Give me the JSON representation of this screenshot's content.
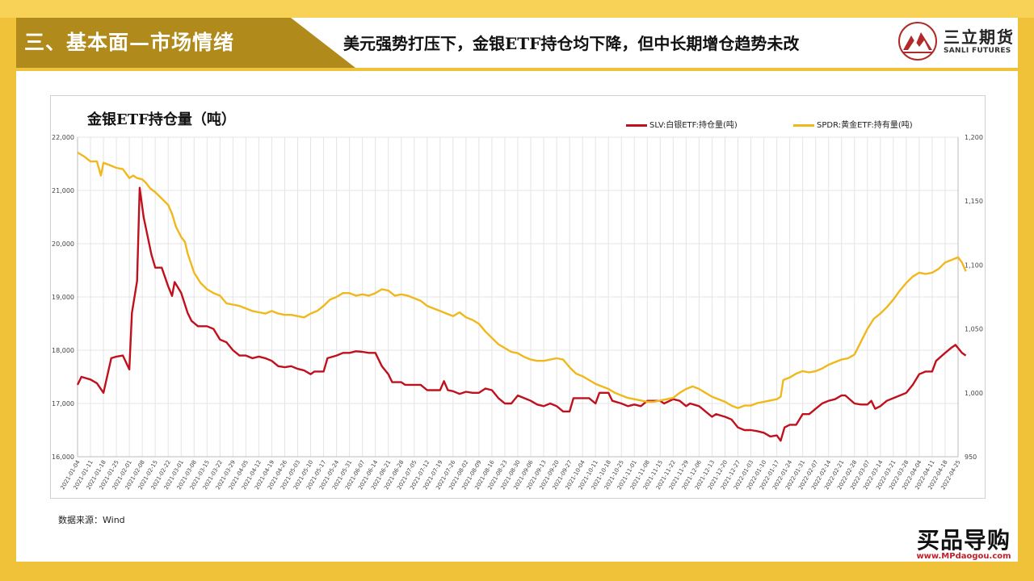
{
  "header": {
    "section_title": "三、基本面—市场情绪",
    "headline": "美元强势打压下，金银ETF持仓均下降，但中长期增仓趋势未改",
    "logo_cn": "三立期货",
    "logo_en": "SANLI FUTURES"
  },
  "footer": {
    "source": "数据来源：Wind",
    "watermark_main": "买品导购",
    "watermark_url": "www.MPdaogou.com"
  },
  "colors": {
    "gold_band": "#f0c23a",
    "dark_band": "#b08a1a",
    "silver_series": "#c0101e",
    "gold_series": "#f0b81c"
  },
  "chart_data": {
    "type": "line",
    "title": "金银ETF持仓量（吨）",
    "grid": true,
    "legend_position": "top-right",
    "y_left": {
      "min": 16000,
      "max": 22000,
      "ticks": [
        "16,000",
        "17,000",
        "18,000",
        "19,000",
        "20,000",
        "21,000",
        "22,000"
      ]
    },
    "y_right": {
      "min": 950,
      "max": 1200,
      "ticks": [
        "950",
        "1,000",
        "1,050",
        "1,100",
        "1,150",
        "1,200"
      ]
    },
    "x_labels": [
      "2021-01-04",
      "2021-01-11",
      "2021-01-18",
      "2021-01-25",
      "2021-02-01",
      "2021-02-08",
      "2021-02-15",
      "2021-02-22",
      "2021-03-01",
      "2021-03-08",
      "2021-03-15",
      "2021-03-22",
      "2021-03-29",
      "2021-04-05",
      "2021-04-12",
      "2021-04-19",
      "2021-04-26",
      "2021-05-03",
      "2021-05-10",
      "2021-05-17",
      "2021-05-24",
      "2021-05-31",
      "2021-06-07",
      "2021-06-14",
      "2021-06-21",
      "2021-06-28",
      "2021-07-05",
      "2021-07-12",
      "2021-07-19",
      "2021-07-26",
      "2021-08-02",
      "2021-08-09",
      "2021-08-16",
      "2021-08-23",
      "2021-08-30",
      "2021-09-06",
      "2021-09-13",
      "2021-09-20",
      "2021-09-27",
      "2021-10-04",
      "2021-10-11",
      "2021-10-18",
      "2021-10-25",
      "2021-11-01",
      "2021-11-08",
      "2021-11-15",
      "2021-11-22",
      "2021-11-29",
      "2021-12-06",
      "2021-12-13",
      "2021-12-20",
      "2021-12-27",
      "2022-01-03",
      "2022-01-10",
      "2022-01-17",
      "2022-01-24",
      "2022-01-31",
      "2022-02-07",
      "2022-02-14",
      "2022-02-21",
      "2022-02-28",
      "2022-03-07",
      "2022-03-14",
      "2022-03-21",
      "2022-03-28",
      "2022-04-04",
      "2022-04-11",
      "2022-04-18",
      "2022-04-25"
    ],
    "series": [
      {
        "name": "SLV:白银ETF:持仓量(吨)",
        "axis": "left",
        "color": "#c0101e",
        "points": [
          [
            0,
            17350
          ],
          [
            0.3,
            17500
          ],
          [
            1,
            17450
          ],
          [
            1.5,
            17380
          ],
          [
            2,
            17200
          ],
          [
            2.6,
            17850
          ],
          [
            3,
            17880
          ],
          [
            3.5,
            17900
          ],
          [
            4,
            17640
          ],
          [
            4.2,
            18700
          ],
          [
            4.6,
            19300
          ],
          [
            4.8,
            21050
          ],
          [
            5.1,
            20500
          ],
          [
            5.4,
            20150
          ],
          [
            5.7,
            19800
          ],
          [
            6,
            19550
          ],
          [
            6.5,
            19550
          ],
          [
            7,
            19200
          ],
          [
            7.3,
            19020
          ],
          [
            7.5,
            19280
          ],
          [
            8,
            19080
          ],
          [
            8.5,
            18700
          ],
          [
            8.8,
            18550
          ],
          [
            9.3,
            18450
          ],
          [
            10,
            18450
          ],
          [
            10.5,
            18400
          ],
          [
            11,
            18200
          ],
          [
            11.5,
            18150
          ],
          [
            12,
            18000
          ],
          [
            12.5,
            17900
          ],
          [
            13,
            17900
          ],
          [
            13.5,
            17850
          ],
          [
            14,
            17880
          ],
          [
            14.5,
            17850
          ],
          [
            15,
            17800
          ],
          [
            15.5,
            17700
          ],
          [
            16,
            17680
          ],
          [
            16.5,
            17700
          ],
          [
            17,
            17650
          ],
          [
            17.5,
            17620
          ],
          [
            18,
            17550
          ],
          [
            18.3,
            17600
          ],
          [
            19,
            17600
          ],
          [
            19.3,
            17850
          ],
          [
            20,
            17900
          ],
          [
            20.5,
            17950
          ],
          [
            21,
            17950
          ],
          [
            21.5,
            17980
          ],
          [
            22,
            17970
          ],
          [
            22.5,
            17950
          ],
          [
            23,
            17950
          ],
          [
            23.5,
            17700
          ],
          [
            24,
            17550
          ],
          [
            24.3,
            17400
          ],
          [
            25,
            17400
          ],
          [
            25.3,
            17350
          ],
          [
            26,
            17350
          ],
          [
            26.5,
            17350
          ],
          [
            27,
            17250
          ],
          [
            27.5,
            17250
          ],
          [
            28,
            17250
          ],
          [
            28.3,
            17420
          ],
          [
            28.6,
            17250
          ],
          [
            29,
            17230
          ],
          [
            29.5,
            17180
          ],
          [
            30,
            17220
          ],
          [
            30.5,
            17200
          ],
          [
            31,
            17200
          ],
          [
            31.5,
            17280
          ],
          [
            32,
            17250
          ],
          [
            32.5,
            17100
          ],
          [
            33,
            17000
          ],
          [
            33.5,
            17000
          ],
          [
            34,
            17150
          ],
          [
            34.5,
            17100
          ],
          [
            35,
            17050
          ],
          [
            35.5,
            16980
          ],
          [
            36,
            16950
          ],
          [
            36.5,
            17000
          ],
          [
            37,
            16950
          ],
          [
            37.5,
            16850
          ],
          [
            38,
            16850
          ],
          [
            38.3,
            17100
          ],
          [
            39,
            17100
          ],
          [
            39.5,
            17100
          ],
          [
            40,
            17000
          ],
          [
            40.3,
            17200
          ],
          [
            41,
            17200
          ],
          [
            41.3,
            17050
          ],
          [
            42,
            17000
          ],
          [
            42.5,
            16950
          ],
          [
            43,
            16980
          ],
          [
            43.5,
            16950
          ],
          [
            44,
            17050
          ],
          [
            44.5,
            17050
          ],
          [
            45,
            17050
          ],
          [
            45.3,
            17000
          ],
          [
            46,
            17080
          ],
          [
            46.5,
            17050
          ],
          [
            47,
            16950
          ],
          [
            47.3,
            17000
          ],
          [
            48,
            16950
          ],
          [
            48.5,
            16850
          ],
          [
            49,
            16750
          ],
          [
            49.3,
            16800
          ],
          [
            50,
            16750
          ],
          [
            50.5,
            16700
          ],
          [
            51,
            16550
          ],
          [
            51.5,
            16500
          ],
          [
            52,
            16500
          ],
          [
            52.5,
            16480
          ],
          [
            53,
            16450
          ],
          [
            53.5,
            16380
          ],
          [
            54,
            16400
          ],
          [
            54.3,
            16300
          ],
          [
            54.6,
            16550
          ],
          [
            55,
            16600
          ],
          [
            55.5,
            16600
          ],
          [
            56,
            16800
          ],
          [
            56.5,
            16800
          ],
          [
            57,
            16900
          ],
          [
            57.5,
            17000
          ],
          [
            58,
            17050
          ],
          [
            58.5,
            17080
          ],
          [
            59,
            17150
          ],
          [
            59.3,
            17150
          ],
          [
            60,
            17000
          ],
          [
            60.5,
            16980
          ],
          [
            61,
            16980
          ],
          [
            61.3,
            17050
          ],
          [
            61.6,
            16900
          ],
          [
            62,
            16950
          ],
          [
            62.5,
            17050
          ],
          [
            63,
            17100
          ],
          [
            63.5,
            17150
          ],
          [
            64,
            17200
          ],
          [
            64.5,
            17350
          ],
          [
            65,
            17550
          ],
          [
            65.5,
            17600
          ],
          [
            66,
            17600
          ],
          [
            66.3,
            17800
          ],
          [
            67,
            17950
          ],
          [
            67.5,
            18050
          ],
          [
            67.8,
            18100
          ],
          [
            68.3,
            17950
          ],
          [
            68.6,
            17900
          ]
        ]
      },
      {
        "name": "SPDR:黄金ETF:持有量(吨)",
        "axis": "right",
        "color": "#f0b81c",
        "points": [
          [
            0,
            1188
          ],
          [
            0.5,
            1185
          ],
          [
            1,
            1181
          ],
          [
            1.5,
            1181
          ],
          [
            1.8,
            1170
          ],
          [
            2,
            1180
          ],
          [
            2.5,
            1178
          ],
          [
            3,
            1176
          ],
          [
            3.5,
            1175
          ],
          [
            4,
            1168
          ],
          [
            4.3,
            1170
          ],
          [
            4.6,
            1168
          ],
          [
            5,
            1167
          ],
          [
            5.3,
            1164
          ],
          [
            5.6,
            1160
          ],
          [
            6,
            1157
          ],
          [
            6.5,
            1152
          ],
          [
            7,
            1147
          ],
          [
            7.3,
            1140
          ],
          [
            7.6,
            1130
          ],
          [
            8,
            1122
          ],
          [
            8.3,
            1118
          ],
          [
            8.5,
            1109
          ],
          [
            9,
            1094
          ],
          [
            9.5,
            1086
          ],
          [
            10,
            1081
          ],
          [
            10.5,
            1078
          ],
          [
            11,
            1076
          ],
          [
            11.5,
            1070
          ],
          [
            12,
            1069
          ],
          [
            12.5,
            1068
          ],
          [
            13,
            1066
          ],
          [
            13.5,
            1064
          ],
          [
            14,
            1063
          ],
          [
            14.5,
            1062
          ],
          [
            15,
            1064
          ],
          [
            15.5,
            1062
          ],
          [
            16,
            1061
          ],
          [
            16.5,
            1061
          ],
          [
            17,
            1060
          ],
          [
            17.5,
            1059
          ],
          [
            18,
            1062
          ],
          [
            18.5,
            1064
          ],
          [
            19,
            1068
          ],
          [
            19.5,
            1073
          ],
          [
            20,
            1075
          ],
          [
            20.5,
            1078
          ],
          [
            21,
            1078
          ],
          [
            21.5,
            1076
          ],
          [
            22,
            1077
          ],
          [
            22.5,
            1076
          ],
          [
            23,
            1078
          ],
          [
            23.5,
            1081
          ],
          [
            24,
            1080
          ],
          [
            24.5,
            1076
          ],
          [
            25,
            1077
          ],
          [
            25.5,
            1076
          ],
          [
            26,
            1074
          ],
          [
            26.5,
            1072
          ],
          [
            27,
            1068
          ],
          [
            27.5,
            1066
          ],
          [
            28,
            1064
          ],
          [
            28.5,
            1062
          ],
          [
            29,
            1060
          ],
          [
            29.5,
            1063
          ],
          [
            30,
            1059
          ],
          [
            30.5,
            1057
          ],
          [
            31,
            1054
          ],
          [
            31.5,
            1048
          ],
          [
            32,
            1043
          ],
          [
            32.5,
            1038
          ],
          [
            33,
            1035
          ],
          [
            33.5,
            1032
          ],
          [
            34,
            1031
          ],
          [
            34.5,
            1028
          ],
          [
            35,
            1026
          ],
          [
            35.5,
            1025
          ],
          [
            36,
            1025
          ],
          [
            36.5,
            1026
          ],
          [
            37,
            1027
          ],
          [
            37.5,
            1026
          ],
          [
            38,
            1020
          ],
          [
            38.5,
            1015
          ],
          [
            39,
            1013
          ],
          [
            39.5,
            1010
          ],
          [
            40,
            1007
          ],
          [
            40.5,
            1005
          ],
          [
            41,
            1003
          ],
          [
            41.5,
            1000
          ],
          [
            42,
            998
          ],
          [
            42.5,
            996
          ],
          [
            43,
            995
          ],
          [
            43.5,
            994
          ],
          [
            44,
            993
          ],
          [
            44.5,
            993
          ],
          [
            45,
            994
          ],
          [
            45.5,
            995
          ],
          [
            46,
            996
          ],
          [
            46.5,
            1000
          ],
          [
            47,
            1003
          ],
          [
            47.5,
            1005
          ],
          [
            48,
            1003
          ],
          [
            48.5,
            1000
          ],
          [
            49,
            997
          ],
          [
            49.5,
            995
          ],
          [
            50,
            993
          ],
          [
            50.5,
            990
          ],
          [
            51,
            988
          ],
          [
            51.5,
            990
          ],
          [
            52,
            990
          ],
          [
            52.5,
            992
          ],
          [
            53,
            993
          ],
          [
            53.5,
            994
          ],
          [
            54,
            995
          ],
          [
            54.3,
            997
          ],
          [
            54.5,
            1010
          ],
          [
            55,
            1012
          ],
          [
            55.5,
            1015
          ],
          [
            56,
            1017
          ],
          [
            56.5,
            1016
          ],
          [
            57,
            1017
          ],
          [
            57.5,
            1019
          ],
          [
            58,
            1022
          ],
          [
            58.5,
            1024
          ],
          [
            59,
            1026
          ],
          [
            59.5,
            1027
          ],
          [
            60,
            1030
          ],
          [
            60.5,
            1040
          ],
          [
            61,
            1050
          ],
          [
            61.5,
            1058
          ],
          [
            62,
            1062
          ],
          [
            62.5,
            1067
          ],
          [
            63,
            1073
          ],
          [
            63.5,
            1080
          ],
          [
            64,
            1086
          ],
          [
            64.5,
            1091
          ],
          [
            65,
            1094
          ],
          [
            65.5,
            1093
          ],
          [
            66,
            1094
          ],
          [
            66.5,
            1097
          ],
          [
            67,
            1102
          ],
          [
            67.5,
            1104
          ],
          [
            68,
            1106
          ],
          [
            68.3,
            1102
          ],
          [
            68.6,
            1095
          ]
        ]
      }
    ]
  }
}
